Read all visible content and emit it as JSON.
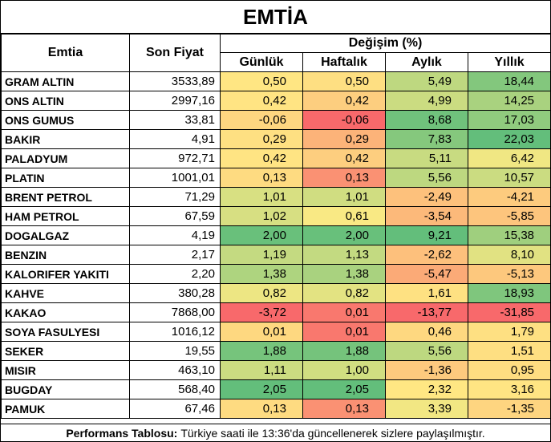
{
  "title": "EMTİA",
  "headers": {
    "commodity": "Emtia",
    "last_price": "Son Fiyat",
    "change_group": "Değişim (%)",
    "daily": "Günlük",
    "weekly": "Haftalık",
    "monthly": "Aylık",
    "yearly": "Yıllık"
  },
  "rows": [
    {
      "name": "GRAM ALTIN",
      "price": "3533,89",
      "daily": "0,50",
      "weekly": "0,50",
      "monthly": "5,49",
      "yearly": "18,44"
    },
    {
      "name": "ONS ALTIN",
      "price": "2997,16",
      "daily": "0,42",
      "weekly": "0,42",
      "monthly": "4,99",
      "yearly": "14,25"
    },
    {
      "name": "ONS GUMUS",
      "price": "33,81",
      "daily": "-0,06",
      "weekly": "-0,06",
      "monthly": "8,68",
      "yearly": "17,03"
    },
    {
      "name": "BAKIR",
      "price": "4,91",
      "daily": "0,29",
      "weekly": "0,29",
      "monthly": "7,83",
      "yearly": "22,03"
    },
    {
      "name": "PALADYUM",
      "price": "972,71",
      "daily": "0,42",
      "weekly": "0,42",
      "monthly": "5,11",
      "yearly": "6,42"
    },
    {
      "name": "PLATIN",
      "price": "1001,01",
      "daily": "0,13",
      "weekly": "0,13",
      "monthly": "5,56",
      "yearly": "10,57"
    },
    {
      "name": "BRENT PETROL",
      "price": "71,29",
      "daily": "1,01",
      "weekly": "1,01",
      "monthly": "-2,49",
      "yearly": "-4,21"
    },
    {
      "name": "HAM PETROL",
      "price": "67,59",
      "daily": "1,02",
      "weekly": "0,61",
      "monthly": "-3,54",
      "yearly": "-5,85"
    },
    {
      "name": "DOGALGAZ",
      "price": "4,19",
      "daily": "2,00",
      "weekly": "2,00",
      "monthly": "9,21",
      "yearly": "15,38"
    },
    {
      "name": "BENZIN",
      "price": "2,17",
      "daily": "1,19",
      "weekly": "1,13",
      "monthly": "-2,62",
      "yearly": "8,10"
    },
    {
      "name": "KALORIFER YAKITI",
      "price": "2,20",
      "daily": "1,38",
      "weekly": "1,38",
      "monthly": "-5,47",
      "yearly": "-5,13"
    },
    {
      "name": "KAHVE",
      "price": "380,28",
      "daily": "0,82",
      "weekly": "0,82",
      "monthly": "1,61",
      "yearly": "18,93"
    },
    {
      "name": "KAKAO",
      "price": "7868,00",
      "daily": "-3,72",
      "weekly": "0,01",
      "monthly": "-13,77",
      "yearly": "-31,85"
    },
    {
      "name": "SOYA FASULYESI",
      "price": "1016,12",
      "daily": "0,01",
      "weekly": "0,01",
      "monthly": "0,46",
      "yearly": "1,79"
    },
    {
      "name": "SEKER",
      "price": "19,55",
      "daily": "1,88",
      "weekly": "1,88",
      "monthly": "5,56",
      "yearly": "1,51"
    },
    {
      "name": "MISIR",
      "price": "463,10",
      "daily": "1,11",
      "weekly": "1,00",
      "monthly": "-1,36",
      "yearly": "0,95"
    },
    {
      "name": "BUGDAY",
      "price": "568,40",
      "daily": "2,05",
      "weekly": "2,05",
      "monthly": "2,32",
      "yearly": "3,16"
    },
    {
      "name": "PAMUK",
      "price": "67,46",
      "daily": "0,13",
      "weekly": "0,13",
      "monthly": "3,39",
      "yearly": "-1,35"
    }
  ],
  "footer": {
    "label": "Performans Tablosu:",
    "text": "Türkiye saati ile 13:36'da güncellenerek sizlere paylaşılmıştır."
  },
  "colors": {
    "red": "#f8696b",
    "orange": "#fbaa77",
    "yellow": "#ffeb84",
    "light_green": "#cbdc81",
    "green": "#63be7b"
  }
}
